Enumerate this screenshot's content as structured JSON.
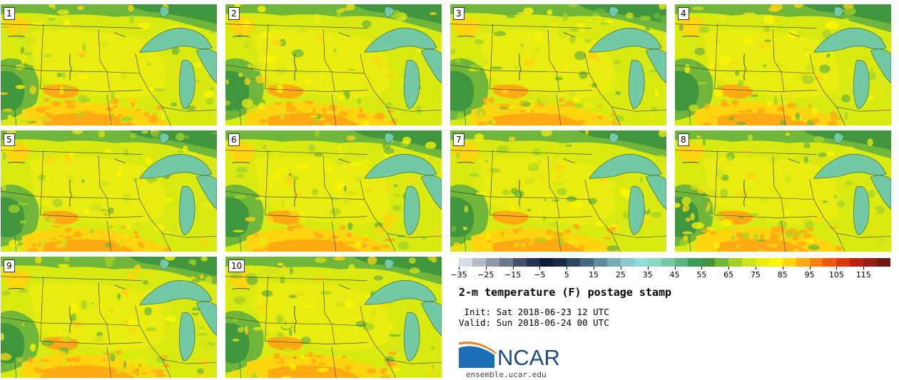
{
  "panels": [
    "1",
    "2",
    "3",
    "4",
    "5",
    "6",
    "7",
    "8",
    "9",
    "10"
  ],
  "colorbar": {
    "colors": [
      "#d8dde6",
      "#b4bcc8",
      "#8e99a9",
      "#6b788a",
      "#46526a",
      "#253350",
      "#101c35",
      "#1b2a45",
      "#2e4760",
      "#466a80",
      "#5f8d9e",
      "#79aab7",
      "#8ec8cc",
      "#93dcd8",
      "#88d9c2",
      "#73c9a3",
      "#5bb383",
      "#3f9c5b",
      "#41963e",
      "#6fb63a",
      "#a4d327",
      "#cde31b",
      "#e8ec10",
      "#fff700",
      "#ffd411",
      "#ffaa12",
      "#ff8010",
      "#ef5a10",
      "#d9390c",
      "#b8240e",
      "#962013",
      "#701a13"
    ],
    "tick_labels": [
      "−35",
      "−25",
      "−15",
      "−5",
      "5",
      "15",
      "25",
      "35",
      "45",
      "55",
      "65",
      "75",
      "85",
      "95",
      "105",
      "115"
    ]
  },
  "title": "2-m temperature (F) postage stamp",
  "init_text": " Init: Sat 2018-06-23 12 UTC",
  "valid_text": "Valid: Sun 2018-06-24 00 UTC",
  "logo": {
    "name": "NCAR",
    "url": "ensemble.ucar.edu"
  }
}
